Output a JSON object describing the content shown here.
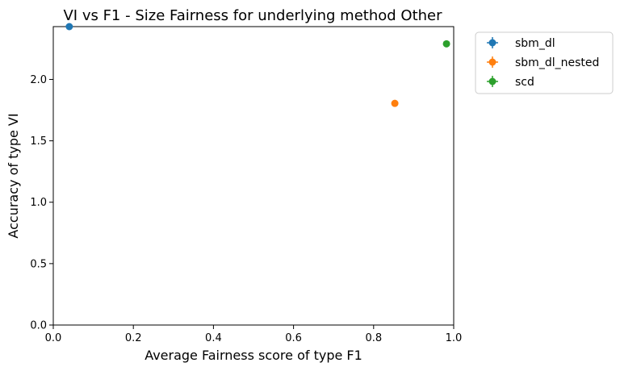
{
  "chart_data": {
    "type": "scatter",
    "title": "VI vs F1 - Size Fairness for underlying method Other",
    "xlabel": "Average Fairness score of type F1",
    "ylabel": "Accuracy of type VI",
    "xlim": [
      0.0,
      1.0
    ],
    "ylim": [
      0.0,
      2.43
    ],
    "xticks": [
      "0.0",
      "0.2",
      "0.4",
      "0.6",
      "0.8",
      "1.0"
    ],
    "yticks": [
      "0.0",
      "0.5",
      "1.0",
      "1.5",
      "2.0"
    ],
    "grid": false,
    "legend_position": "outside-top-right",
    "series": [
      {
        "name": "sbm_dl",
        "color": "#1f77b4",
        "x": [
          0.04
        ],
        "y": [
          2.43
        ]
      },
      {
        "name": "sbm_dl_nested",
        "color": "#ff7f0e",
        "x": [
          0.853
        ],
        "y": [
          1.805
        ]
      },
      {
        "name": "scd",
        "color": "#2ca02c",
        "x": [
          0.982
        ],
        "y": [
          2.29
        ]
      }
    ]
  }
}
